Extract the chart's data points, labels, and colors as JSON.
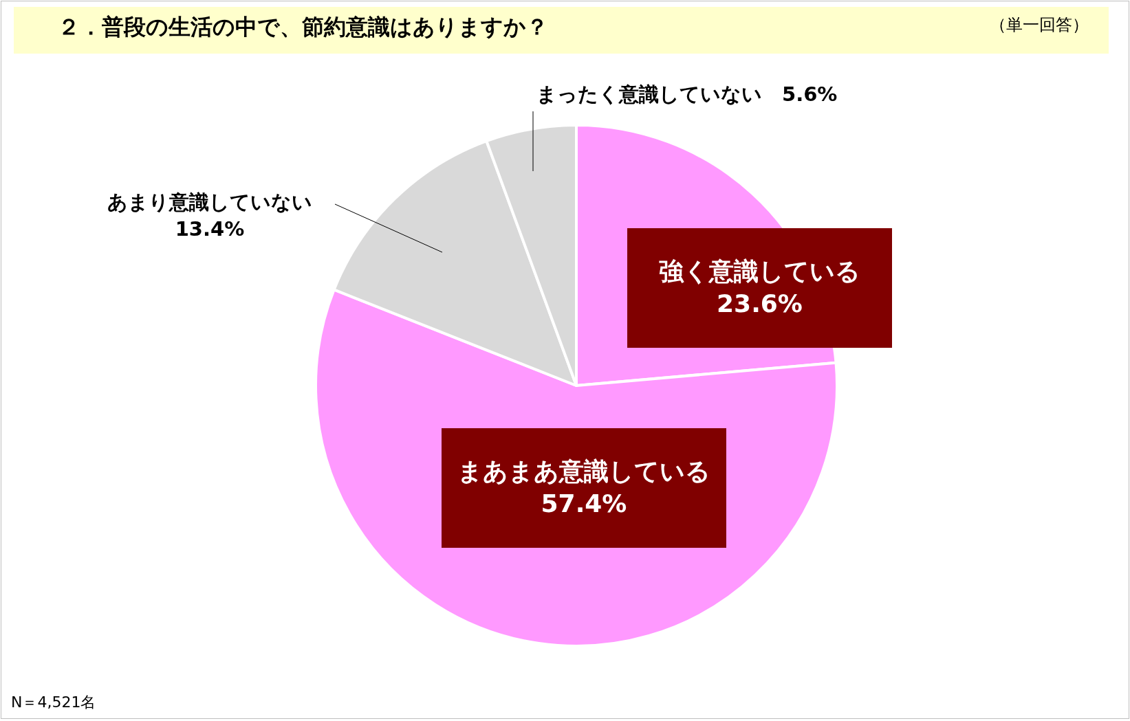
{
  "chart_data": {
    "type": "pie",
    "title": "２．普段の生活の中で、節約意識はありますか？",
    "subtitle": "（単一回答）",
    "categories": [
      "強く意識している",
      "まあまあ意識している",
      "あまり意識していない",
      "まったく意識していない"
    ],
    "values": [
      23.6,
      57.4,
      13.4,
      5.6
    ],
    "colors": [
      "#ff99ff",
      "#ff99ff",
      "#d9d9d9",
      "#d9d9d9"
    ],
    "value_labels": [
      "23.6%",
      "57.4%",
      "13.4%",
      "5.6%"
    ],
    "annotations": [
      "N＝4,521名"
    ]
  }
}
